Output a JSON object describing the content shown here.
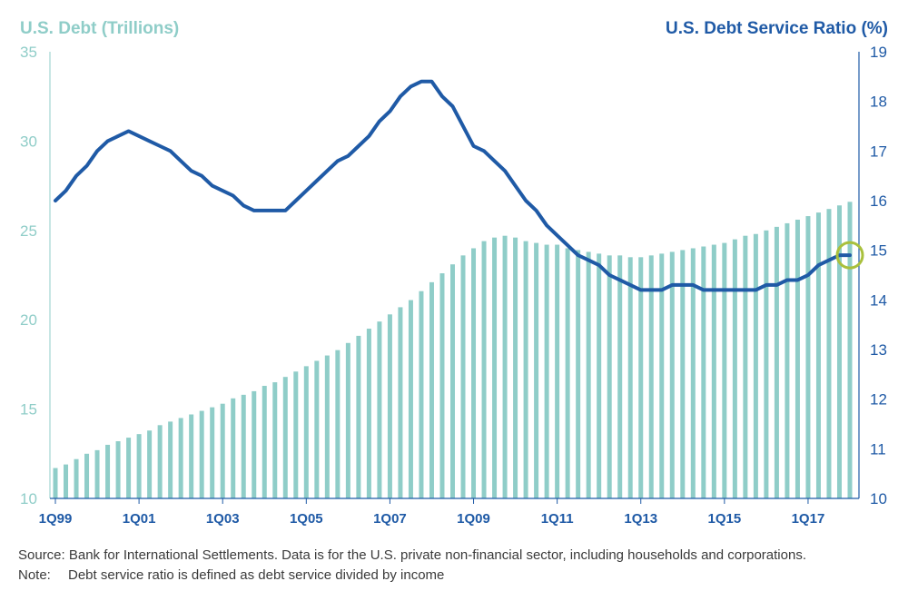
{
  "chart_data": {
    "type": "bar+line",
    "left_axis": {
      "title": "U.S. Debt (Trillions)",
      "range": [
        10,
        35
      ],
      "ticks": [
        10,
        15,
        20,
        25,
        30,
        35
      ],
      "color": "#8fcdc8"
    },
    "right_axis": {
      "title": "U.S. Debt Service Ratio (%)",
      "range": [
        10,
        19
      ],
      "ticks": [
        10,
        11,
        12,
        13,
        14,
        15,
        16,
        17,
        18,
        19
      ],
      "color": "#1f5aa6"
    },
    "x_tick_labels": [
      "1Q99",
      "1Q01",
      "1Q03",
      "1Q05",
      "1Q07",
      "1Q09",
      "1Q11",
      "1Q13",
      "1Q15",
      "1Q17"
    ],
    "x_tick_positions": [
      0,
      8,
      16,
      24,
      32,
      40,
      48,
      56,
      64,
      72
    ],
    "quarters": [
      "1Q99",
      "2Q99",
      "3Q99",
      "4Q99",
      "1Q00",
      "2Q00",
      "3Q00",
      "4Q00",
      "1Q01",
      "2Q01",
      "3Q01",
      "4Q01",
      "1Q02",
      "2Q02",
      "3Q02",
      "4Q02",
      "1Q03",
      "2Q03",
      "3Q03",
      "4Q03",
      "1Q04",
      "2Q04",
      "3Q04",
      "4Q04",
      "1Q05",
      "2Q05",
      "3Q05",
      "4Q05",
      "1Q06",
      "2Q06",
      "3Q06",
      "4Q06",
      "1Q07",
      "2Q07",
      "3Q07",
      "4Q07",
      "1Q08",
      "2Q08",
      "3Q08",
      "4Q08",
      "1Q09",
      "2Q09",
      "3Q09",
      "4Q09",
      "1Q10",
      "2Q10",
      "3Q10",
      "4Q10",
      "1Q11",
      "2Q11",
      "3Q11",
      "4Q11",
      "1Q12",
      "2Q12",
      "3Q12",
      "4Q12",
      "1Q13",
      "2Q13",
      "3Q13",
      "4Q13",
      "1Q14",
      "2Q14",
      "3Q14",
      "4Q14",
      "1Q15",
      "2Q15",
      "3Q15",
      "4Q15",
      "1Q16",
      "2Q16",
      "3Q16",
      "4Q16",
      "1Q17",
      "2Q17",
      "3Q17",
      "4Q17",
      "1Q18"
    ],
    "series": [
      {
        "name": "U.S. Debt (Trillions)",
        "type": "bar",
        "axis": "left",
        "color": "#8fcdc8",
        "values": [
          11.7,
          11.9,
          12.2,
          12.5,
          12.7,
          13.0,
          13.2,
          13.4,
          13.6,
          13.8,
          14.1,
          14.3,
          14.5,
          14.7,
          14.9,
          15.1,
          15.3,
          15.6,
          15.8,
          16.0,
          16.3,
          16.5,
          16.8,
          17.1,
          17.4,
          17.7,
          18.0,
          18.3,
          18.7,
          19.1,
          19.5,
          19.9,
          20.3,
          20.7,
          21.1,
          21.6,
          22.1,
          22.6,
          23.1,
          23.6,
          24.0,
          24.4,
          24.6,
          24.7,
          24.6,
          24.4,
          24.3,
          24.2,
          24.2,
          24.0,
          23.9,
          23.8,
          23.7,
          23.6,
          23.6,
          23.5,
          23.5,
          23.6,
          23.7,
          23.8,
          23.9,
          24.0,
          24.1,
          24.2,
          24.3,
          24.5,
          24.7,
          24.8,
          25.0,
          25.2,
          25.4,
          25.6,
          25.8,
          26.0,
          26.2,
          26.4,
          26.6
        ]
      },
      {
        "name": "U.S. Debt Service Ratio (%)",
        "type": "line",
        "axis": "right",
        "color": "#1f5aa6",
        "values": [
          16.0,
          16.2,
          16.5,
          16.7,
          17.0,
          17.2,
          17.3,
          17.4,
          17.3,
          17.2,
          17.1,
          17.0,
          16.8,
          16.6,
          16.5,
          16.3,
          16.2,
          16.1,
          15.9,
          15.8,
          15.8,
          15.8,
          15.8,
          16.0,
          16.2,
          16.4,
          16.6,
          16.8,
          16.9,
          17.1,
          17.3,
          17.6,
          17.8,
          18.1,
          18.3,
          18.4,
          18.4,
          18.1,
          17.9,
          17.5,
          17.1,
          17.0,
          16.8,
          16.6,
          16.3,
          16.0,
          15.8,
          15.5,
          15.3,
          15.1,
          14.9,
          14.8,
          14.7,
          14.5,
          14.4,
          14.3,
          14.2,
          14.2,
          14.2,
          14.3,
          14.3,
          14.3,
          14.2,
          14.2,
          14.2,
          14.2,
          14.2,
          14.2,
          14.3,
          14.3,
          14.4,
          14.4,
          14.5,
          14.7,
          14.8,
          14.9,
          14.9
        ]
      }
    ],
    "highlight": {
      "index": 76,
      "series": "U.S. Debt Service Ratio (%)",
      "color": "#a9c03c"
    }
  },
  "footnotes": {
    "source": "Source: Bank for International Settlements.  Data is for the U.S. private non-financial sector, including households and corporations.",
    "note_label": "Note:",
    "note_text": "Debt service ratio is defined as debt service divided by income"
  }
}
